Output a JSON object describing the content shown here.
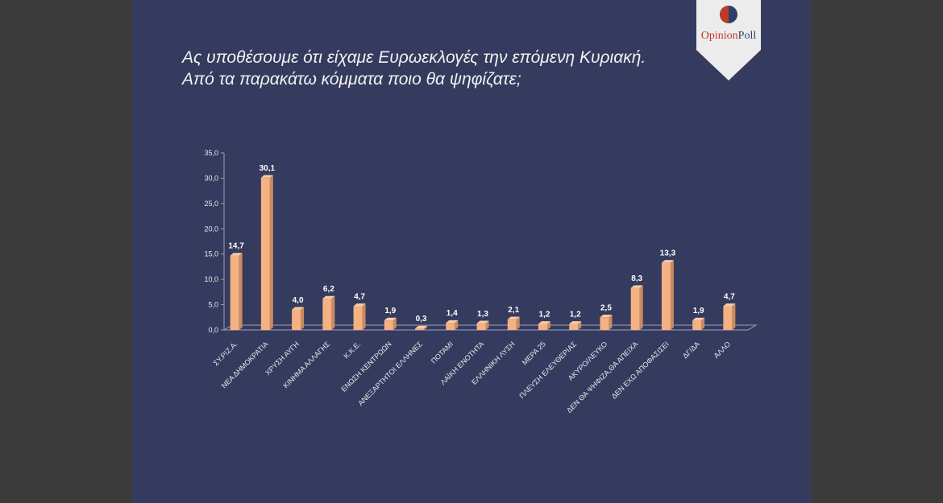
{
  "brand": {
    "name_part1": "Opinion",
    "name_part2": "Poll",
    "accent": "#c0392b",
    "navy": "#2c3e6b"
  },
  "colors": {
    "background": "#353b5e",
    "bar_front": "#f4b183",
    "bar_top": "#f8cba6",
    "bar_side": "#c98b5f"
  },
  "chart_data": {
    "type": "bar",
    "title_lines": [
      "Ας υποθέσουμε ότι είχαμε Ευρωεκλογές την επόμενη Κυριακή.",
      "Από τα παρακάτω κόμματα ποιο θα ψηφίζατε;"
    ],
    "categories": [
      "ΣΥ.ΡΙΖ.Α.",
      "ΝΕΑ ΔΗΜΟΚΡΑΤΙΑ",
      "ΧΡΥΣΗ ΑΥΓΗ",
      "ΚΙΝΗΜΑ ΑΛΛΑΓΗΣ",
      "Κ.Κ.Ε.",
      "ΕΝΩΣΗ ΚΕΝΤΡΩΩΝ",
      "ΑΝΕΞΑΡΤΗΤΟΙ ΕΛΛΗΝΕΣ",
      "ΠΟΤΑΜΙ",
      "ΛΑΪΚΗ ΕΝΟΤΗΤΑ",
      "ΕΛΛΗΝΙΚΗ ΛΥΣΗ",
      "ΜΕΡΑ 25",
      "ΠΛΕΥΣΗ ΕΛΕΥΘΕΡΙΑΣ",
      "ΑΚΥΡΟ/ΛΕΥΚΟ",
      "ΔΕΝ ΘΑ ΨΗΦΙΖΑ,ΘΑ ΑΠΕΙΧΑ",
      "ΔΕΝ ΕΧΩ ΑΠΟΦΑΣΙΣΕΙ",
      "ΔΓ/ΔΑ",
      "ΑΛΛΟ"
    ],
    "values": [
      14.7,
      30.1,
      4.0,
      6.2,
      4.7,
      1.9,
      0.3,
      1.4,
      1.3,
      2.1,
      1.2,
      1.2,
      2.5,
      8.3,
      13.3,
      1.9,
      4.7
    ],
    "value_labels": [
      "14,7",
      "30,1",
      "4,0",
      "6,2",
      "4,7",
      "1,9",
      "0,3",
      "1,4",
      "1,3",
      "2,1",
      "1,2",
      "1,2",
      "2,5",
      "8,3",
      "13,3",
      "1,9",
      "4,7"
    ],
    "y_ticks": [
      0,
      5,
      10,
      15,
      20,
      25,
      30,
      35
    ],
    "y_tick_labels": [
      "0,0",
      "5,0",
      "10,0",
      "15,0",
      "20,0",
      "25,0",
      "30,0",
      "35,0"
    ],
    "ylim": [
      0,
      35
    ],
    "grid": false,
    "legend": "none"
  }
}
